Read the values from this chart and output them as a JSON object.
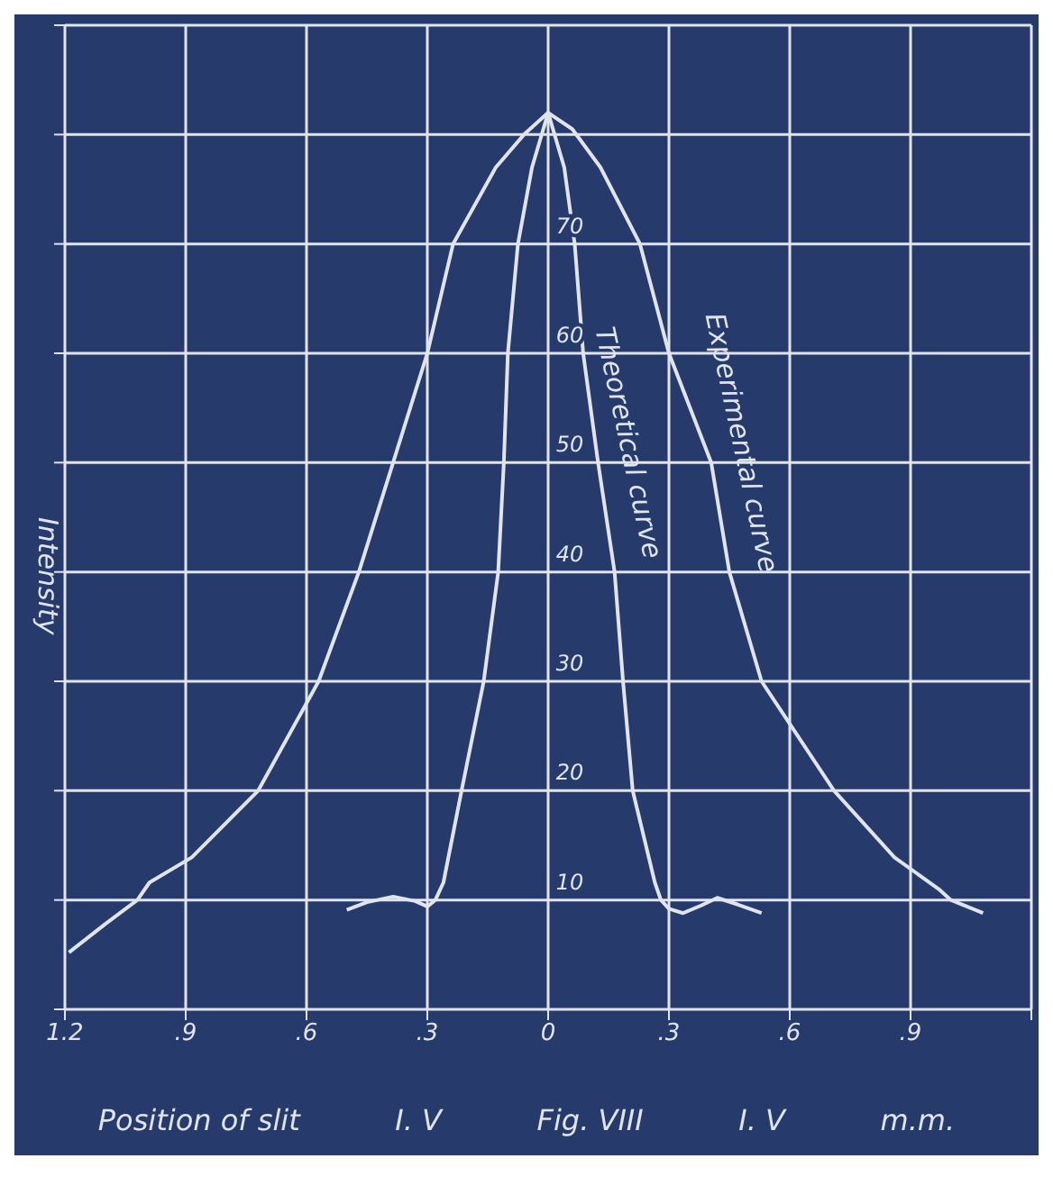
{
  "chart_data": {
    "type": "line",
    "xlabel": "Position of slit",
    "ylabel": "Intensity",
    "annotations": [
      "I. V",
      "Fig. VIII",
      "I. V",
      "m.m."
    ],
    "xlim": [
      -1.2,
      1.2
    ],
    "xticks": [
      {
        "value": -1.2,
        "label": "1.2"
      },
      {
        "value": -0.9,
        "label": ".9"
      },
      {
        "value": -0.6,
        "label": ".6"
      },
      {
        "value": -0.3,
        "label": ".3"
      },
      0,
      {
        "value": 0.3,
        "label": ".3"
      },
      {
        "value": 0.6,
        "label": ".6"
      },
      {
        "value": 0.9,
        "label": ".9"
      },
      {
        "value": 1.2,
        "label": null
      }
    ],
    "ylim": [
      0,
      90
    ],
    "yticks": [
      {
        "value": 0,
        "label": null
      },
      10,
      20,
      30,
      40,
      50,
      60,
      70,
      {
        "value": 80,
        "label": null
      },
      {
        "value": 90,
        "label": null
      }
    ],
    "grid": true,
    "marker": "none",
    "line_style": "solid",
    "series": [
      {
        "name": "Theoretical curve",
        "color": "#dfe4ee",
        "x": [
          -0.5,
          -0.45,
          -0.385,
          -0.33,
          -0.3,
          -0.28,
          -0.26,
          -0.215,
          -0.16,
          -0.124,
          -0.11,
          -0.1,
          -0.075,
          -0.04,
          0,
          0.04,
          0.066,
          0.087,
          0.124,
          0.165,
          0.186,
          0.21,
          0.265,
          0.28,
          0.3,
          0.335,
          0.38,
          0.42,
          0.47,
          0.53
        ],
        "values": [
          9.1,
          9.8,
          10.3,
          9.9,
          9.4,
          10,
          11.6,
          20,
          30,
          40,
          50,
          60,
          70,
          77,
          82,
          77,
          70,
          60,
          50,
          40,
          30,
          20,
          11.6,
          10,
          9.2,
          8.8,
          9.5,
          10.2,
          9.6,
          8.8
        ]
      },
      {
        "name": "Experimental curve",
        "color": "#dfe4ee",
        "x": [
          -1.19,
          -1.1,
          -1.02,
          -0.99,
          -0.885,
          -0.72,
          -0.57,
          -0.47,
          -0.385,
          -0.3,
          -0.236,
          -0.13,
          -0.06,
          0,
          0.06,
          0.13,
          0.228,
          0.3,
          0.405,
          0.45,
          0.53,
          0.71,
          0.86,
          0.97,
          1.0,
          1.08
        ],
        "values": [
          5.2,
          7.8,
          10,
          11.6,
          13.9,
          20,
          30,
          40,
          50,
          60,
          70,
          77,
          80,
          82,
          80.5,
          77,
          70,
          60,
          50,
          40,
          30,
          20,
          13.9,
          11,
          10,
          8.8
        ]
      }
    ]
  }
}
